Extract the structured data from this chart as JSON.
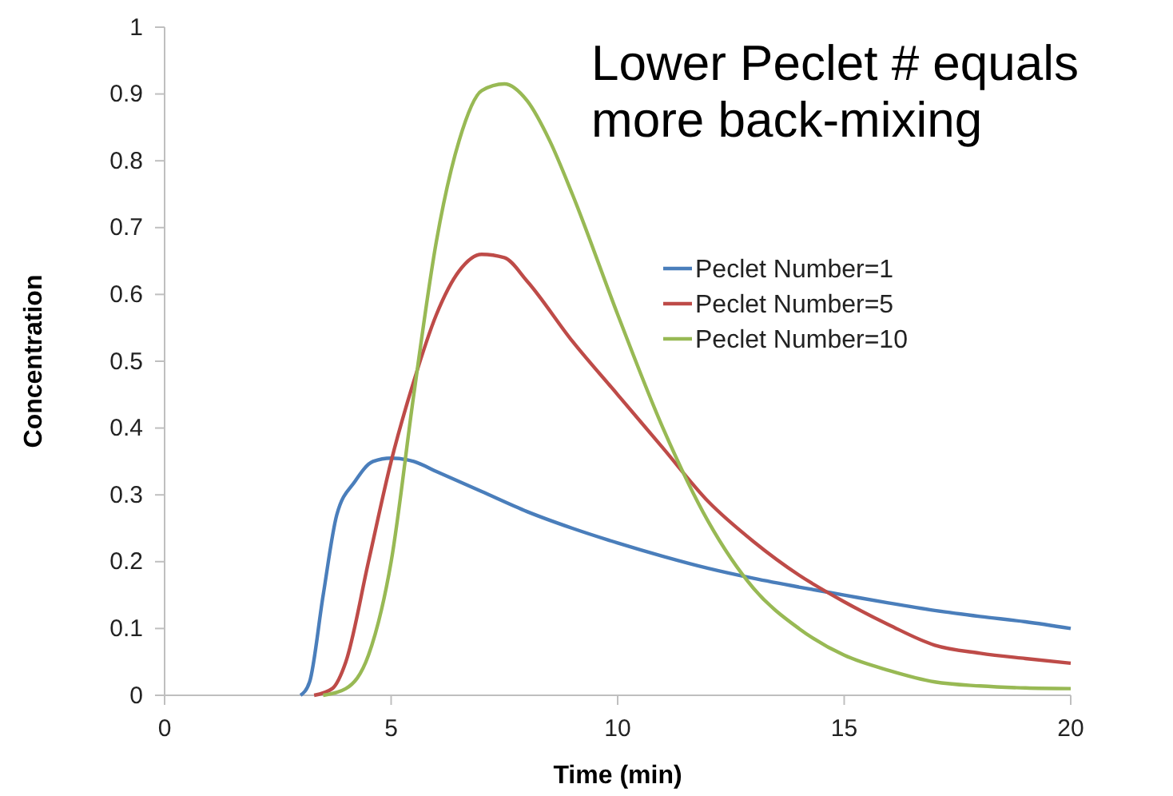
{
  "chart_data": {
    "type": "line",
    "xlabel": "Time (min)",
    "ylabel": "Concentration",
    "annotations": [
      "Lower Peclet # equals more back-mixing"
    ],
    "xlim": [
      0,
      20
    ],
    "xticks": [
      0,
      5,
      10,
      15,
      20
    ],
    "ylim": [
      0,
      1
    ],
    "yticks": [
      0,
      0.1,
      0.2,
      0.3,
      0.4,
      0.5,
      0.6,
      0.7,
      0.8,
      0.9,
      1
    ],
    "grid": false,
    "legend": "top right",
    "marker": "none",
    "line_style": "solid",
    "series": [
      {
        "name": "Peclet Number=1",
        "color": "#4a7ebb",
        "x": [
          3.0,
          3.2,
          3.5,
          3.8,
          4.2,
          4.6,
          5,
          5.5,
          6,
          7,
          8,
          9,
          10,
          11,
          12,
          13,
          14,
          15,
          16,
          17,
          18,
          19,
          20
        ],
        "values": [
          0,
          0.02,
          0.15,
          0.27,
          0.32,
          0.35,
          0.355,
          0.35,
          0.335,
          0.305,
          0.275,
          0.25,
          0.228,
          0.208,
          0.19,
          0.175,
          0.162,
          0.15,
          0.138,
          0.127,
          0.118,
          0.11,
          0.1
        ]
      },
      {
        "name": "Peclet Number=5",
        "color": "#be4b48",
        "x": [
          3.3,
          3.7,
          4,
          4.5,
          5,
          5.5,
          6,
          6.5,
          7,
          7.5,
          8,
          9,
          10,
          11,
          12,
          13,
          14,
          15,
          16,
          17,
          18,
          19,
          20
        ],
        "values": [
          0,
          0.01,
          0.05,
          0.2,
          0.35,
          0.47,
          0.57,
          0.635,
          0.66,
          0.655,
          0.62,
          0.53,
          0.45,
          0.37,
          0.29,
          0.23,
          0.18,
          0.14,
          0.105,
          0.075,
          0.063,
          0.055,
          0.048
        ]
      },
      {
        "name": "Peclet Number=10",
        "color": "#98b954",
        "x": [
          3.5,
          4,
          4.5,
          5,
          5.5,
          6,
          6.5,
          7,
          7.5,
          8,
          8.5,
          9,
          10,
          11,
          12,
          13,
          14,
          15,
          16,
          17,
          18,
          19,
          20
        ],
        "values": [
          0,
          0.01,
          0.06,
          0.2,
          0.45,
          0.68,
          0.83,
          0.905,
          0.915,
          0.89,
          0.83,
          0.75,
          0.57,
          0.4,
          0.26,
          0.16,
          0.1,
          0.06,
          0.037,
          0.02,
          0.014,
          0.011,
          0.01
        ]
      }
    ]
  }
}
